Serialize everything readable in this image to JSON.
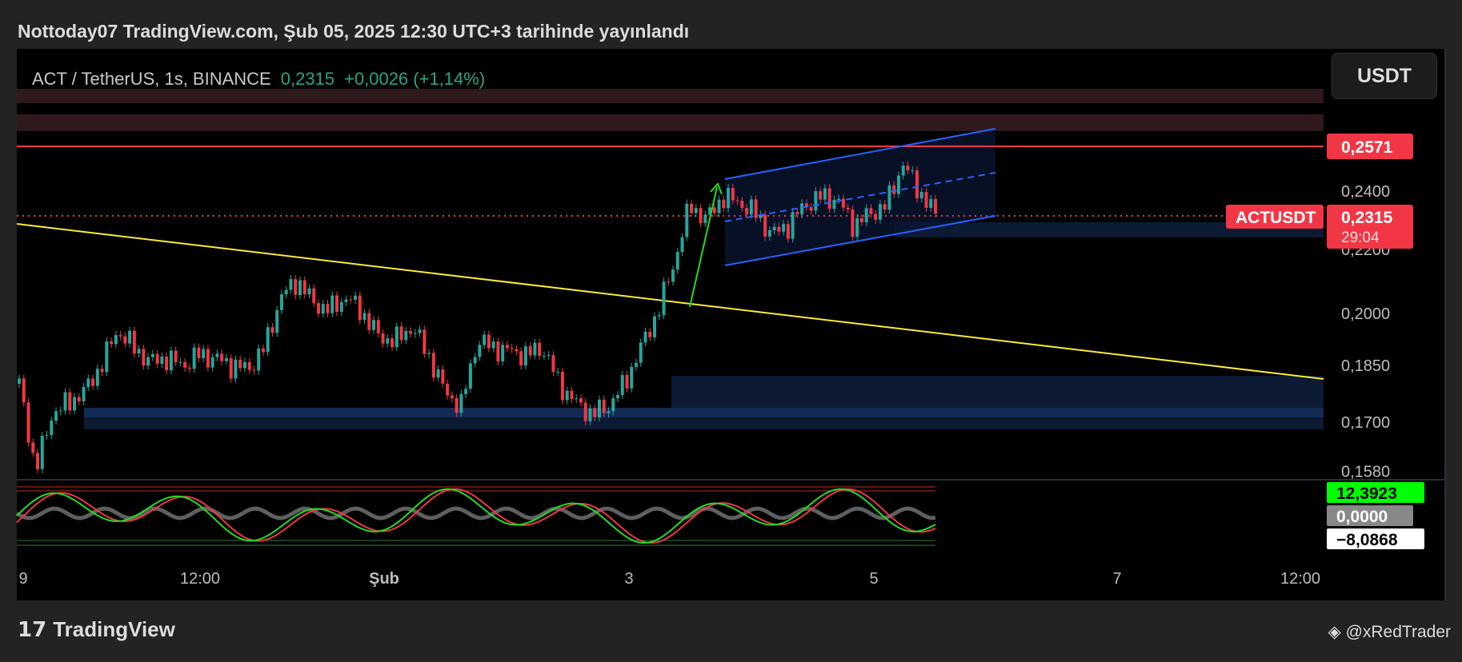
{
  "header": {
    "title": "Nottoday07 TradingView.com, Şub 05, 2025 12:30 UTC+3 tarihinde yayınlandı"
  },
  "symbol": {
    "name": "ACT / TetherUS, 1s, BINANCE",
    "price": "0,2315",
    "change": "+0,0026 (+1,14%)"
  },
  "currency_button": "USDT",
  "colors": {
    "up": "#26a69a",
    "down": "#f23645",
    "trendline": "#ffeb3b",
    "channel": "#2962ff",
    "resistance": "#f23645"
  },
  "chart_data": {
    "type": "candlestick",
    "y_scale": "log",
    "ylim": [
      0.158,
      0.27
    ],
    "y_ticks": [
      "0,2400",
      "0,2200",
      "0,2000",
      "0,1850",
      "0,1700",
      "0,1580"
    ],
    "x_ticks": [
      "9",
      "12:00",
      "Şub",
      "3",
      "5",
      "7",
      "12:00"
    ],
    "approx_closes": [
      0.18,
      0.158,
      0.172,
      0.175,
      0.178,
      0.185,
      0.195,
      0.19,
      0.186,
      0.187,
      0.185,
      0.188,
      0.187,
      0.185,
      0.184,
      0.19,
      0.205,
      0.21,
      0.203,
      0.201,
      0.205,
      0.2,
      0.193,
      0.192,
      0.196,
      0.188,
      0.178,
      0.174,
      0.192,
      0.19,
      0.189,
      0.188,
      0.19,
      0.18,
      0.175,
      0.172,
      0.174,
      0.18,
      0.19,
      0.2,
      0.215,
      0.235,
      0.23,
      0.238,
      0.236,
      0.232,
      0.225,
      0.228,
      0.235,
      0.238,
      0.237,
      0.228,
      0.232,
      0.235,
      0.25,
      0.24,
      0.2315
    ],
    "resistance_level": 0.2571,
    "resistance_label": "0,2571",
    "last_price_label": "0,2315",
    "symbol_label": "ACTUSDT",
    "countdown": "29:04",
    "indicator_labels": [
      "12,3923",
      "0,0000",
      "−8,0868"
    ]
  },
  "footer": {
    "brand": "TradingView",
    "credit": "@xRedTrader"
  }
}
